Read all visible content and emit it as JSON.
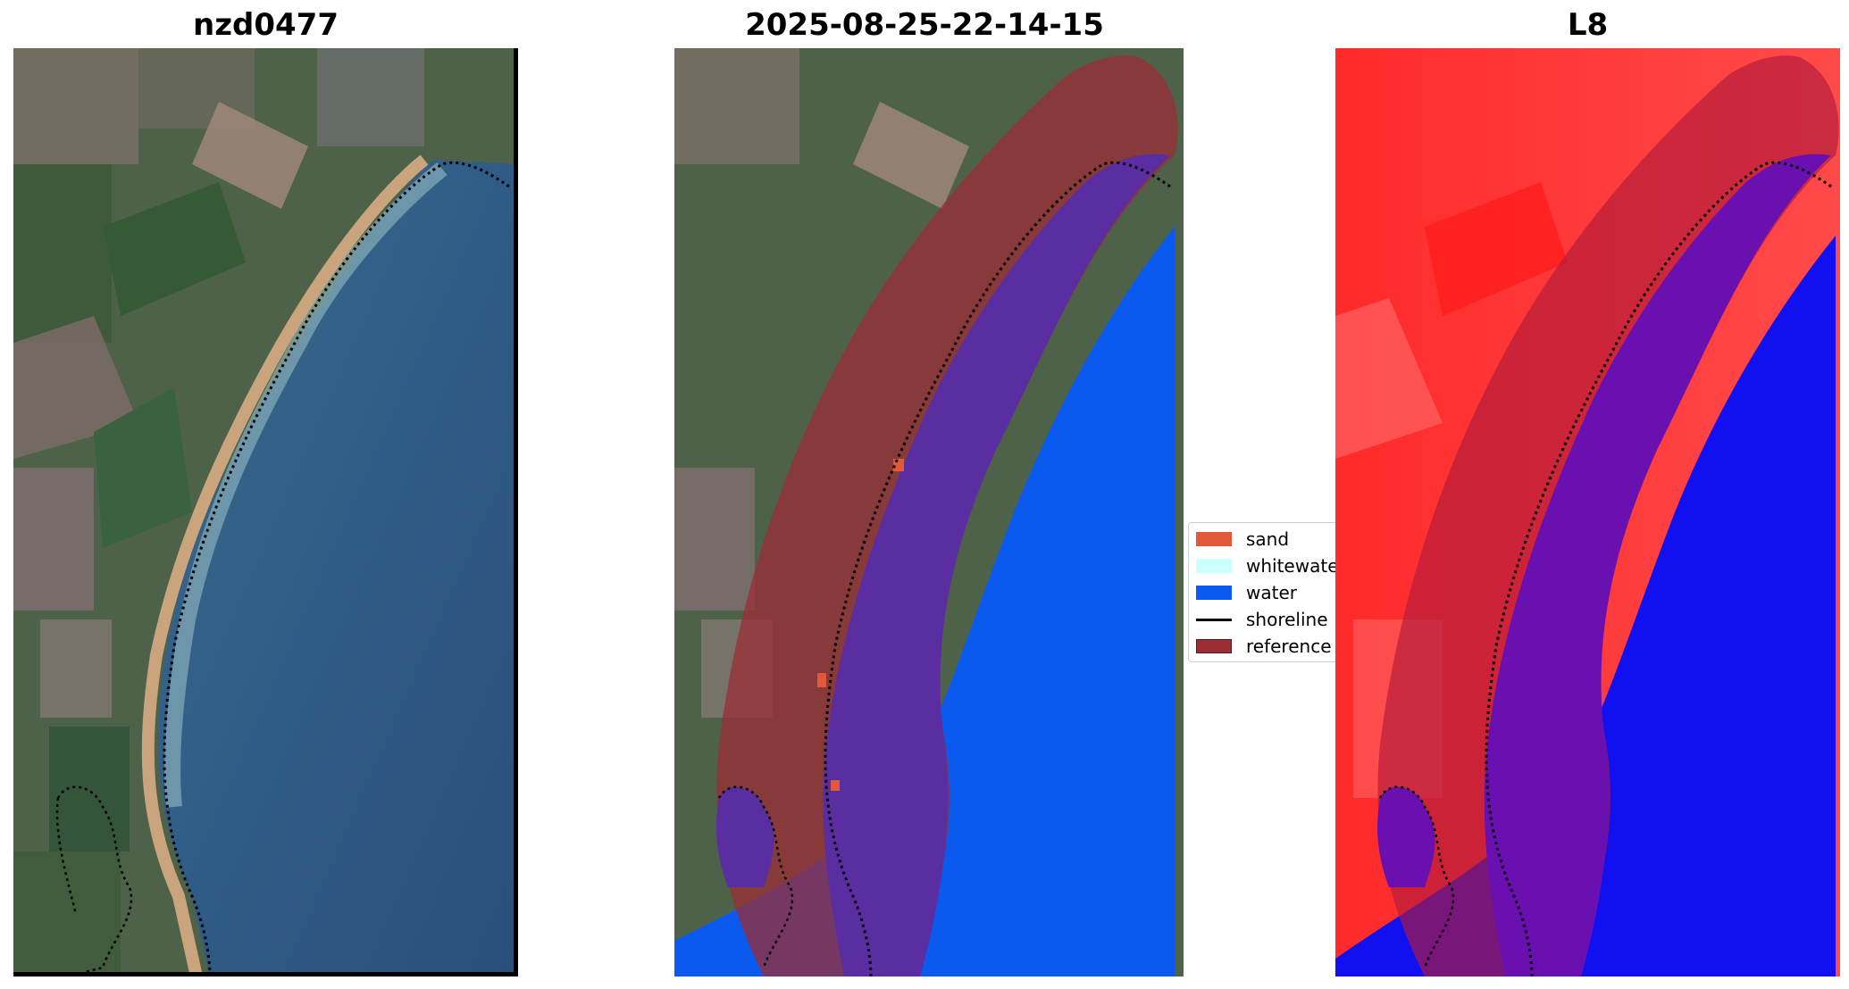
{
  "panels": [
    {
      "title": "nzd0477"
    },
    {
      "title": "2025-08-25-22-14-15"
    },
    {
      "title": "L8"
    }
  ],
  "legend": {
    "items": [
      {
        "label": "sand",
        "color": "#e2583a"
      },
      {
        "label": "whitewater",
        "color": "#ccffff"
      },
      {
        "label": "water",
        "color": "#0a5af0"
      },
      {
        "label": "shoreline",
        "color": "#000000"
      },
      {
        "label": "reference",
        "color": "#9b2d34"
      }
    ]
  },
  "colors": {
    "ocean_rgb": "#2f5c86",
    "land_rgb": "#4e6249",
    "beach_sand": "#caa47c",
    "class_water": "#0a5af0",
    "class_water_in_buffer": "#5a2ea0",
    "reference_buffer": "#9b2d34",
    "index_land": "#ff2222",
    "index_water": "#1010f0"
  }
}
